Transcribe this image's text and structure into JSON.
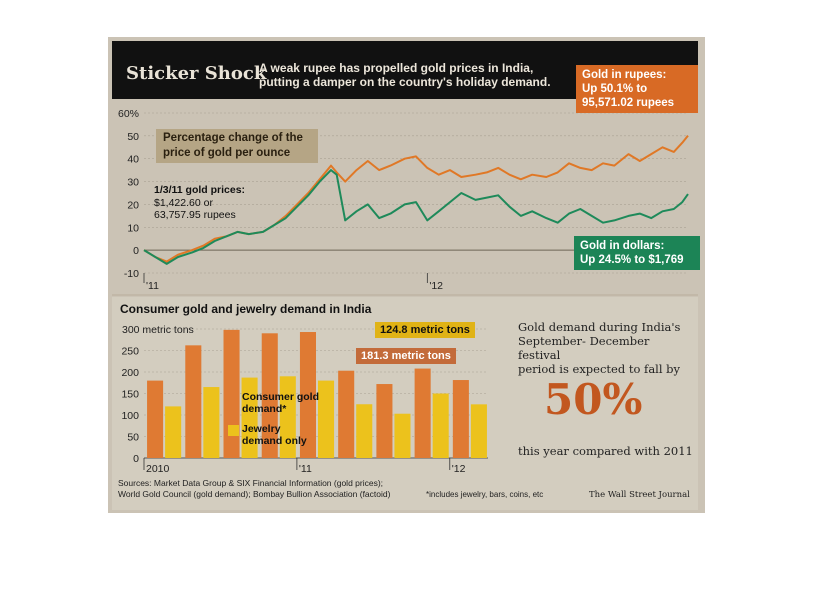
{
  "header": {
    "title": "Sticker Shock",
    "subtitle_line1": "A weak rupee has propelled gold prices in India,",
    "subtitle_line2": "putting a damper on the country's holiday demand."
  },
  "top_chart": {
    "pct_label_line1": "Percentage change of the",
    "pct_label_line2": "price of gold per ounce",
    "base_label": {
      "line1": "1/3/11 gold prices:",
      "line2": "$1,422.60 or",
      "line3": "63,757.95 rupees"
    },
    "rupee_callout": {
      "line1": "Gold in rupees:",
      "line2": "Up 50.1% to",
      "line3": "95,571.02 rupees"
    },
    "dollar_callout": {
      "line1": "Gold in dollars:",
      "line2": "Up 24.5% to $1,769"
    }
  },
  "bottom_chart": {
    "title": "Consumer gold and jewelry demand in India",
    "callout_124": "124.8 metric tons",
    "callout_181": "181.3 metric tons",
    "legend": {
      "consumer_line1": "Consumer gold",
      "consumer_line2": "demand*",
      "jewelry_line1": "Jewelry",
      "jewelry_line2": "demand only"
    }
  },
  "factoid": {
    "line1": "Gold demand during India's",
    "line2": "September- December festival",
    "line3": "period is expected to fall by",
    "big": "50%",
    "bottom": "this year compared with 2011"
  },
  "sources": {
    "line1": "Sources: Market Data Group & SIX Financial Information (gold prices);",
    "line2": "World Gold Council (gold demand); Bombay Bullion Association (factoid)"
  },
  "footnote": "*includes jewelry, bars, coins, etc",
  "credit": "The Wall Street Journal",
  "colors": {
    "rupee": "#e07826",
    "dollar": "#1e8a5a",
    "consumer_bar": "#df7a33",
    "jewelry_bar": "#ecc21c",
    "background": "#cbc3b5",
    "header": "#111111"
  },
  "chart_data": [
    {
      "type": "line",
      "x_tick_labels": [
        "'11",
        "'12"
      ],
      "ylim": [
        -10,
        60
      ],
      "y_tick_labels": [
        "60%",
        "50",
        "40",
        "30",
        "20",
        "10",
        "0",
        "-10"
      ],
      "y_ticks": [
        60,
        50,
        40,
        30,
        20,
        10,
        0,
        -10
      ],
      "x_domain": [
        2011.0,
        2012.92
      ],
      "series": [
        {
          "name": "Gold in rupees",
          "x": [
            2011.0,
            2011.04,
            2011.08,
            2011.12,
            2011.17,
            2011.21,
            2011.25,
            2011.29,
            2011.33,
            2011.37,
            2011.42,
            2011.46,
            2011.5,
            2011.54,
            2011.58,
            2011.62,
            2011.66,
            2011.68,
            2011.71,
            2011.75,
            2011.79,
            2011.83,
            2011.87,
            2011.92,
            2011.96,
            2012.0,
            2012.04,
            2012.08,
            2012.12,
            2012.17,
            2012.21,
            2012.25,
            2012.29,
            2012.33,
            2012.37,
            2012.42,
            2012.46,
            2012.5,
            2012.54,
            2012.58,
            2012.62,
            2012.66,
            2012.71,
            2012.75,
            2012.79,
            2012.83,
            2012.87,
            2012.9,
            2012.92
          ],
          "values": [
            0,
            -3,
            -5,
            -2,
            0,
            2,
            5,
            6,
            8,
            7,
            8,
            11,
            15,
            20,
            25,
            31,
            37,
            34,
            30,
            35,
            39,
            35,
            37,
            40,
            41,
            36,
            33,
            35,
            32,
            33,
            34,
            36,
            33,
            31,
            33,
            32,
            34,
            38,
            36,
            35,
            38,
            37,
            42,
            39,
            42,
            45,
            43,
            47,
            50.1
          ]
        },
        {
          "name": "Gold in dollars",
          "x": [
            2011.0,
            2011.04,
            2011.08,
            2011.12,
            2011.17,
            2011.21,
            2011.25,
            2011.29,
            2011.33,
            2011.37,
            2011.42,
            2011.46,
            2011.5,
            2011.54,
            2011.58,
            2011.62,
            2011.66,
            2011.68,
            2011.71,
            2011.75,
            2011.79,
            2011.83,
            2011.87,
            2011.92,
            2011.96,
            2012.0,
            2012.04,
            2012.08,
            2012.12,
            2012.17,
            2012.21,
            2012.25,
            2012.29,
            2012.33,
            2012.37,
            2012.42,
            2012.46,
            2012.5,
            2012.54,
            2012.58,
            2012.62,
            2012.66,
            2012.71,
            2012.75,
            2012.79,
            2012.83,
            2012.87,
            2012.9,
            2012.92
          ],
          "values": [
            0,
            -3,
            -6,
            -3,
            -1,
            1,
            4,
            6,
            8,
            7,
            8,
            11,
            14,
            19,
            24,
            30,
            35,
            33,
            13,
            17,
            20,
            14,
            16,
            20,
            21,
            13,
            17,
            21,
            25,
            22,
            23,
            24,
            19,
            15,
            17,
            14,
            12,
            16,
            18,
            15,
            12,
            13,
            15,
            16,
            14,
            17,
            18,
            21,
            24.5
          ]
        }
      ]
    },
    {
      "type": "bar",
      "ylim": [
        0,
        300
      ],
      "y_tick_labels": [
        "300 metric tons",
        "250",
        "200",
        "150",
        "100",
        "50",
        "0"
      ],
      "y_ticks": [
        300,
        250,
        200,
        150,
        100,
        50,
        0
      ],
      "x_tick_labels": [
        "2010",
        "'11",
        "'12"
      ],
      "categories": [
        "2010 Q1",
        "2010 Q2",
        "2010 Q3",
        "2010 Q4",
        "2011 Q1",
        "2011 Q2",
        "2011 Q3",
        "2011 Q4",
        "2012 Q1",
        "2012 Q2",
        "2012 Q3"
      ],
      "series": [
        {
          "name": "Consumer gold demand*",
          "values": [
            180,
            262,
            298,
            290,
            293,
            203,
            172,
            208,
            181.3,
            0,
            0
          ]
        },
        {
          "name": "Jewelry demand only",
          "values": [
            120,
            165,
            187,
            190,
            180,
            125,
            103,
            150,
            124.8,
            0,
            0
          ]
        }
      ],
      "categories_used": 9
    }
  ]
}
